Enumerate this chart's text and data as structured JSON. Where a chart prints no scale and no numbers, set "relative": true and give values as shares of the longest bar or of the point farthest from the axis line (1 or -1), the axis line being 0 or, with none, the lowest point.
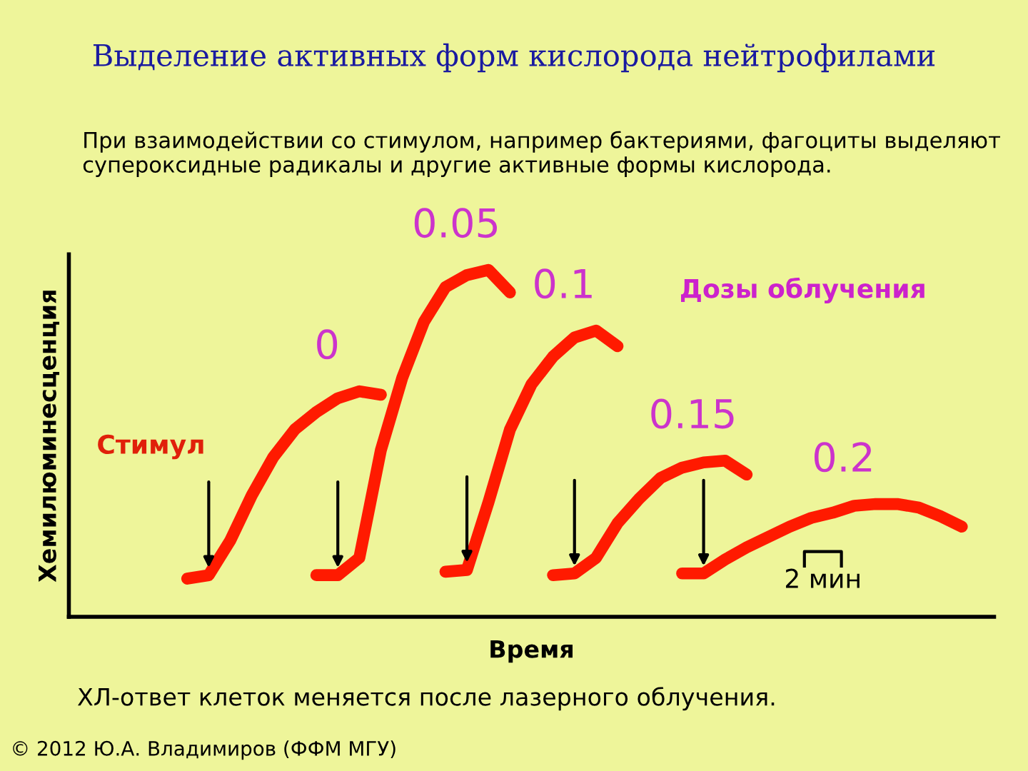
{
  "chart_data": {
    "type": "line",
    "relative": true,
    "title": "Выделение активных форм кислорода нейтрофилами",
    "subtitle": "При взаимодействии со стимулом, например бактериями, фагоциты выделяют супероксидные радикалы и другие активные формы кислорода.",
    "xlabel": "Время",
    "ylabel": "Хемилюминесценция",
    "categories": [
      null,
      null,
      null,
      null,
      null,
      null,
      null,
      null,
      null,
      null,
      null,
      null,
      null,
      null,
      null,
      null,
      null,
      null,
      null,
      null,
      null,
      null,
      null,
      null,
      null,
      null,
      null,
      null,
      null,
      null,
      null,
      null,
      null,
      null,
      null,
      null,
      null,
      null,
      null,
      null,
      null,
      null,
      null
    ],
    "series": [
      {
        "name": "0",
        "color": "#ff1a00",
        "values": [
          null,
          null,
          null,
          null,
          null,
          0.11,
          0.12,
          0.22,
          0.35,
          0.46,
          0.54,
          0.59,
          0.63,
          0.65,
          0.64,
          null,
          null,
          null,
          null,
          null,
          null,
          null,
          null,
          null,
          null,
          null,
          null,
          null,
          null,
          null,
          null,
          null,
          null,
          null,
          null,
          null,
          null,
          null,
          null,
          null,
          null,
          null,
          null
        ]
      },
      {
        "name": "0.05",
        "color": "#ff1a00",
        "values": [
          null,
          null,
          null,
          null,
          null,
          null,
          null,
          null,
          null,
          null,
          null,
          0.12,
          0.12,
          0.17,
          0.48,
          0.69,
          0.85,
          0.95,
          0.985,
          1.0,
          0.935,
          null,
          null,
          null,
          null,
          null,
          null,
          null,
          null,
          null,
          null,
          null,
          null,
          null,
          null,
          null,
          null,
          null,
          null,
          null,
          null,
          null,
          null
        ]
      },
      {
        "name": "0.1",
        "color": "#ff1a00",
        "values": [
          null,
          null,
          null,
          null,
          null,
          null,
          null,
          null,
          null,
          null,
          null,
          null,
          null,
          null,
          null,
          null,
          null,
          0.13,
          0.135,
          0.33,
          0.54,
          0.67,
          0.75,
          0.805,
          0.825,
          0.78,
          null,
          null,
          null,
          null,
          null,
          null,
          null,
          null,
          null,
          null,
          null,
          null,
          null,
          null,
          null,
          null,
          null
        ]
      },
      {
        "name": "0.15",
        "color": "#ff1a00",
        "values": [
          null,
          null,
          null,
          null,
          null,
          null,
          null,
          null,
          null,
          null,
          null,
          null,
          null,
          null,
          null,
          null,
          null,
          null,
          null,
          null,
          null,
          null,
          0.12,
          0.125,
          0.17,
          0.27,
          0.34,
          0.4,
          0.43,
          0.445,
          0.45,
          0.41,
          null,
          null,
          null,
          null,
          null,
          null,
          null,
          null,
          null,
          null,
          null
        ]
      },
      {
        "name": "0.2",
        "color": "#ff1a00",
        "values": [
          null,
          null,
          null,
          null,
          null,
          null,
          null,
          null,
          null,
          null,
          null,
          null,
          null,
          null,
          null,
          null,
          null,
          null,
          null,
          null,
          null,
          null,
          null,
          null,
          null,
          null,
          null,
          null,
          0.125,
          0.125,
          0.165,
          0.2,
          0.23,
          0.26,
          0.285,
          0.3,
          0.32,
          0.325,
          0.325,
          0.315,
          0.29,
          0.26,
          null
        ]
      }
    ],
    "annotations": [
      "Стимул",
      "Дозы облучения",
      "2 мин",
      "ХЛ-ответ клеток меняется после лазерного облучения.",
      "© 2012 Ю.А. Владимиров (ФФМ МГУ)"
    ]
  }
}
